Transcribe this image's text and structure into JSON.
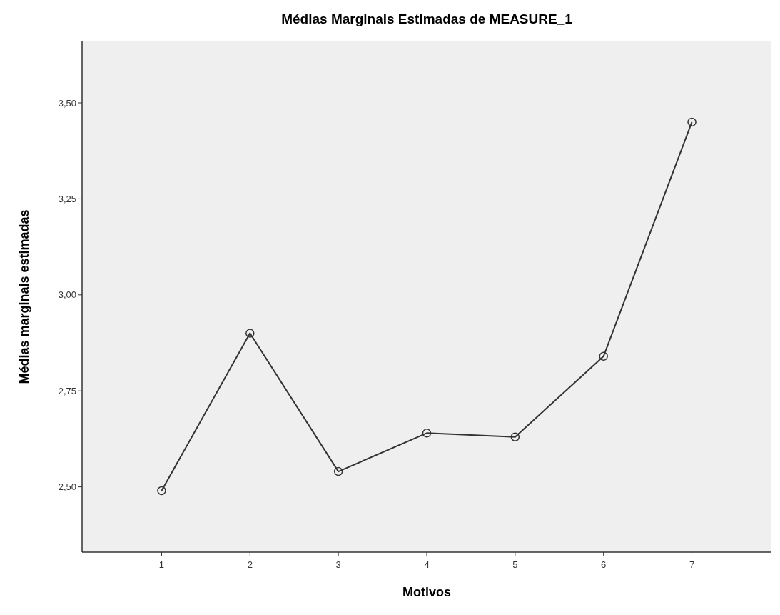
{
  "chart_data": {
    "type": "line",
    "title": "Médias Marginais Estimadas de MEASURE_1",
    "xlabel": "Motivos",
    "ylabel": "Médias marginais estimadas",
    "categories": [
      "1",
      "2",
      "3",
      "4",
      "5",
      "6",
      "7"
    ],
    "series": [
      {
        "color": "#333333",
        "values": [
          2.49,
          2.9,
          2.54,
          2.64,
          2.63,
          2.84,
          3.45
        ]
      }
    ],
    "ylim": [
      2.33,
      3.66
    ],
    "yticks": [
      {
        "value": 2.5,
        "label": "2,50"
      },
      {
        "value": 2.75,
        "label": "2,75"
      },
      {
        "value": 3.0,
        "label": "3,00"
      },
      {
        "value": 3.25,
        "label": "3,25"
      },
      {
        "value": 3.5,
        "label": "3,50"
      }
    ],
    "marker": "circle",
    "line_style": "solid"
  }
}
